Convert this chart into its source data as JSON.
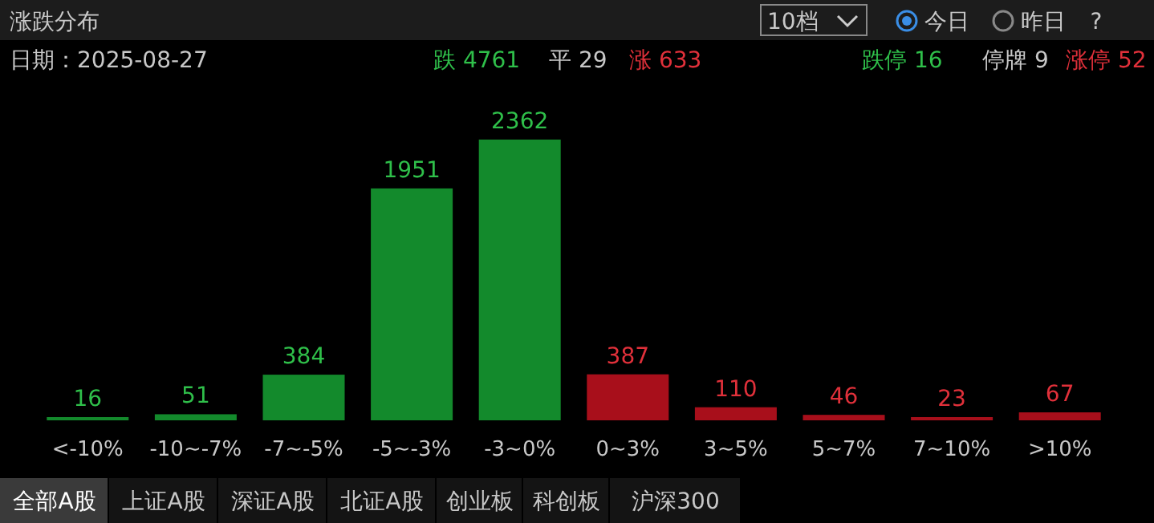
{
  "chart_data": {
    "type": "bar",
    "title": "涨跌分布",
    "categories": [
      "<-10%",
      "-10~-7%",
      "-7~-5%",
      "-5~-3%",
      "-3~0%",
      "0~3%",
      "3~5%",
      "5~7%",
      "7~10%",
      ">10%"
    ],
    "values": [
      16,
      51,
      384,
      1951,
      2362,
      387,
      110,
      46,
      23,
      67
    ],
    "colors": [
      "#138a2c",
      "#138a2c",
      "#138a2c",
      "#138a2c",
      "#138a2c",
      "#a80f1b",
      "#a80f1b",
      "#a80f1b",
      "#a80f1b",
      "#a80f1b"
    ],
    "data_labels": true,
    "annotations": [
      "10档",
      "今日",
      "昨日",
      "?",
      "日期：2025-08-27",
      "跌 4761",
      "平 29",
      "涨 633",
      "跌停 16",
      "停牌 9",
      "涨停 52",
      "全部A股",
      "上证A股",
      "深证A股",
      "北证A股",
      "创业板",
      "科创板",
      "沪深300"
    ]
  }
}
